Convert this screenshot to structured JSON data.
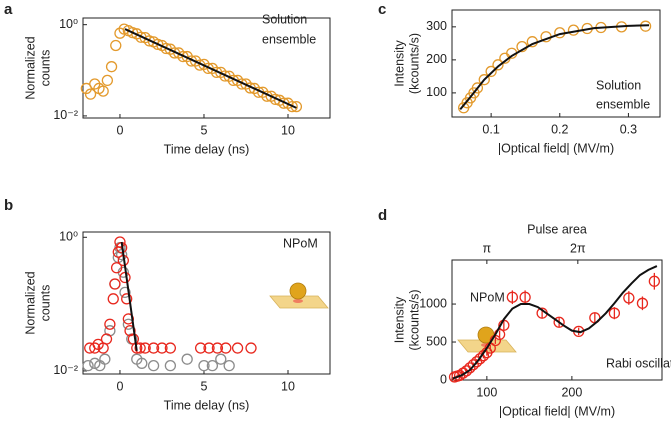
{
  "chart_data": [
    {
      "type": "scatter",
      "label": "a",
      "ylabel": [
        "Normalized",
        "counts"
      ],
      "xlabel": "Time delay (ns)",
      "annotations": [
        "Solution",
        "ensemble"
      ],
      "ylog": true,
      "xlim": [
        -2.2,
        12.5
      ],
      "ylim": [
        0.009,
        1.4
      ],
      "xticks": [
        0,
        5,
        10
      ],
      "yticks": [
        {
          "value": 0.01,
          "label": "10⁻²"
        },
        {
          "value": 1,
          "label": "10⁰"
        }
      ],
      "series": [
        {
          "marker": "circle",
          "color": "#e39a2d",
          "x": [
            -2,
            -1.75,
            -1.5,
            -1.25,
            -1,
            -0.75,
            -0.5,
            -0.25,
            0,
            0.25,
            0.5,
            0.75,
            1,
            1.25,
            1.5,
            1.75,
            2,
            2.25,
            2.5,
            2.75,
            3,
            3.25,
            3.5,
            3.75,
            4,
            4.25,
            4.5,
            4.75,
            5,
            5.25,
            5.5,
            5.75,
            6,
            6.25,
            6.5,
            6.75,
            7,
            7.25,
            7.5,
            7.75,
            8,
            8.25,
            8.5,
            8.75,
            9,
            9.25,
            9.5,
            9.75,
            10,
            10.25,
            10.5
          ],
          "values": [
            0.04,
            0.03,
            0.05,
            0.04,
            0.035,
            0.06,
            0.12,
            0.35,
            0.65,
            0.8,
            0.74,
            0.67,
            0.63,
            0.53,
            0.52,
            0.44,
            0.42,
            0.37,
            0.35,
            0.3,
            0.29,
            0.24,
            0.24,
            0.2,
            0.2,
            0.16,
            0.16,
            0.13,
            0.135,
            0.11,
            0.11,
            0.09,
            0.09,
            0.075,
            0.074,
            0.06,
            0.06,
            0.05,
            0.05,
            0.041,
            0.04,
            0.033,
            0.033,
            0.027,
            0.027,
            0.023,
            0.022,
            0.019,
            0.019,
            0.016,
            0.016
          ]
        },
        {
          "marker": "line",
          "color": "#111111",
          "x": [
            0.3,
            10.5
          ],
          "values": [
            0.8,
            0.015
          ]
        }
      ]
    },
    {
      "type": "scatter",
      "label": "b",
      "ylabel": [
        "Normalized",
        "counts"
      ],
      "xlabel": "Time delay (ns)",
      "annotations": [
        "NPoM"
      ],
      "ylog": true,
      "xlim": [
        -2.2,
        12.5
      ],
      "ylim": [
        0.009,
        1.2
      ],
      "xticks": [
        0,
        5,
        10
      ],
      "yticks": [
        {
          "value": 0.01,
          "label": "10⁻²"
        },
        {
          "value": 1,
          "label": "10⁰"
        }
      ],
      "series": [
        {
          "marker": "circle",
          "color": "#8c8c8c",
          "x": [
            -1.9,
            -1.5,
            -1.2,
            -0.9,
            -0.6,
            -0.3,
            -0.1,
            0,
            0.1,
            0.2,
            0.3,
            0.5,
            0.7,
            1,
            1.3,
            2,
            3,
            4,
            5,
            5.5,
            6,
            6.5
          ],
          "values": [
            0.012,
            0.013,
            0.012,
            0.015,
            0.04,
            0.2,
            0.5,
            0.7,
            0.55,
            0.3,
            0.15,
            0.05,
            0.03,
            0.015,
            0.013,
            0.012,
            0.012,
            0.015,
            0.012,
            0.012,
            0.015,
            0.012
          ]
        },
        {
          "marker": "circle",
          "color": "#e8281e",
          "x": [
            -1.8,
            -1.5,
            -1.3,
            -1,
            -0.8,
            -0.6,
            -0.4,
            -0.3,
            -0.2,
            -0.1,
            0,
            0.1,
            0.2,
            0.3,
            0.4,
            0.5,
            0.6,
            0.8,
            1,
            1.2,
            1.5,
            2,
            2.5,
            3,
            4.8,
            5.3,
            5.8,
            6.3,
            7,
            7.8
          ],
          "values": [
            0.022,
            0.022,
            0.025,
            0.022,
            0.03,
            0.05,
            0.12,
            0.2,
            0.35,
            0.6,
            0.85,
            0.7,
            0.45,
            0.25,
            0.12,
            0.06,
            0.04,
            0.03,
            0.022,
            0.022,
            0.022,
            0.022,
            0.022,
            0.022,
            0.022,
            0.022,
            0.022,
            0.022,
            0.022,
            0.022
          ]
        },
        {
          "marker": "line",
          "color": "#111111",
          "x": [
            0.1,
            1.0
          ],
          "values": [
            0.85,
            0.02
          ]
        }
      ]
    },
    {
      "type": "scatter",
      "label": "c",
      "ylabel": [
        "Intensity",
        "(kcounts/s)"
      ],
      "xlabel": "|Optical field| (MV/m)",
      "annotations": [
        "Solution",
        "ensemble"
      ],
      "xlim": [
        0.043,
        0.346
      ],
      "ylim": [
        27,
        351
      ],
      "xticks": [
        0.1,
        0.2,
        0.3
      ],
      "yticks": [
        100,
        200,
        300
      ],
      "series": [
        {
          "marker": "circle",
          "color": "#e39a2d",
          "x": [
            0.06,
            0.065,
            0.07,
            0.075,
            0.08,
            0.09,
            0.1,
            0.11,
            0.12,
            0.13,
            0.145,
            0.16,
            0.18,
            0.2,
            0.22,
            0.24,
            0.26,
            0.29,
            0.325
          ],
          "values": [
            55,
            70,
            85,
            100,
            115,
            140,
            165,
            185,
            205,
            220,
            240,
            255,
            270,
            282,
            290,
            295,
            298,
            300,
            302
          ]
        },
        {
          "marker": "line",
          "color": "#111111",
          "x": [
            0.055,
            0.07,
            0.09,
            0.11,
            0.13,
            0.16,
            0.2,
            0.25,
            0.3,
            0.33
          ],
          "values": [
            50,
            88,
            140,
            180,
            212,
            248,
            278,
            296,
            303,
            305
          ]
        }
      ]
    },
    {
      "type": "scatter",
      "label": "d",
      "ylabel": [
        "Intensity",
        "(kcounts/s)"
      ],
      "xlabel": "|Optical field| (MV/m)",
      "annotations": [
        "NPoM",
        "Rabi oscillation"
      ],
      "x2label": "Pulse area",
      "xlim": [
        59,
        306
      ],
      "ylim": [
        0,
        1580
      ],
      "xticks": [
        100,
        200
      ],
      "yticks": [
        0,
        500,
        1000
      ],
      "x2ticks": [
        {
          "value": 100,
          "label": "π"
        },
        {
          "value": 207,
          "label": "2π"
        }
      ],
      "series": [
        {
          "marker": "circle",
          "color": "#e8281e",
          "x": [
            62,
            65,
            68,
            72,
            76,
            80,
            84,
            88,
            92,
            96,
            100,
            104,
            110,
            115,
            120,
            130,
            145,
            165,
            185,
            208,
            227,
            250,
            267,
            283,
            297
          ],
          "values": [
            40,
            50,
            60,
            90,
            120,
            160,
            200,
            240,
            280,
            320,
            360,
            420,
            520,
            600,
            720,
            1090,
            1090,
            880,
            760,
            640,
            820,
            880,
            1080,
            1010,
            1300
          ],
          "errors": [
            20,
            20,
            25,
            25,
            30,
            30,
            30,
            35,
            35,
            35,
            40,
            40,
            45,
            50,
            55,
            90,
            90,
            70,
            60,
            50,
            70,
            80,
            90,
            90,
            110
          ]
        },
        {
          "marker": "line",
          "color": "#111111",
          "x": [
            60,
            70,
            80,
            90,
            100,
            110,
            120,
            130,
            140,
            150,
            160,
            170,
            180,
            190,
            200,
            210,
            220,
            230,
            240,
            250,
            260,
            270,
            280,
            290,
            300
          ],
          "values": [
            20,
            60,
            130,
            260,
            420,
            600,
            800,
            940,
            1000,
            1000,
            960,
            880,
            800,
            720,
            650,
            630,
            680,
            770,
            880,
            1010,
            1150,
            1270,
            1380,
            1450,
            1500
          ]
        }
      ]
    }
  ]
}
